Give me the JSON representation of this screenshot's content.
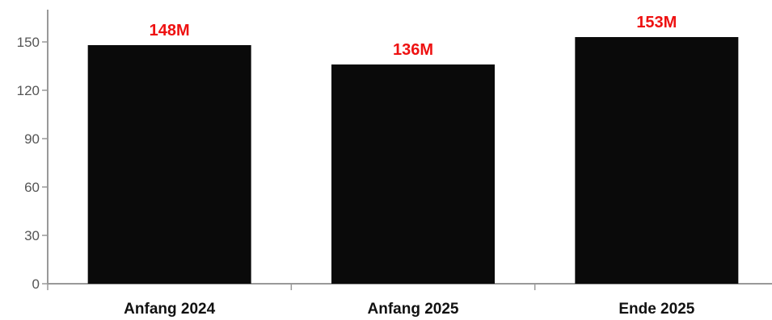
{
  "chart_data": {
    "type": "bar",
    "categories": [
      "Anfang 2024",
      "Anfang 2025",
      "Ende 2025"
    ],
    "values": [
      148,
      136,
      153
    ],
    "data_labels": [
      "148M",
      "136M",
      "153M"
    ],
    "title": "",
    "xlabel": "",
    "ylabel": "",
    "ylim": [
      0,
      170
    ],
    "yticks": [
      0,
      30,
      60,
      90,
      120,
      150
    ],
    "grid": false,
    "legend": "none",
    "bar_color": "#0a0a0a",
    "label_color": "#ee1111",
    "axis_color": "#999999"
  }
}
